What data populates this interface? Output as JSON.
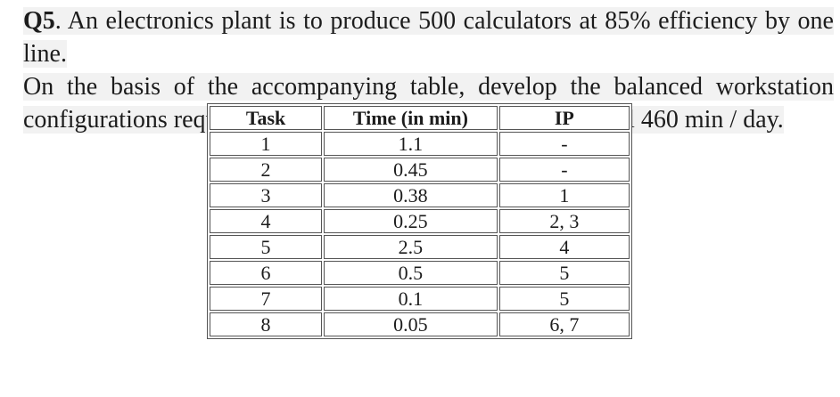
{
  "question": {
    "label": "Q5",
    "lines": [
      ". An electronics plant is to produce 500 calculators at 85% efficiency by one line.",
      "On the basis of the accompanying table, develop the balanced workstation",
      "configurations required to meet this production. Assume goal 460 min / day."
    ],
    "full_text": "Q5. An electronics plant is to produce 500 calculators at 85% efficiency by one line. On the basis of the accompanying table, develop the balanced workstation configurations required to meet this production. Assume goal 460 min / day."
  },
  "table": {
    "headers": [
      "Task",
      "Time (in min)",
      "IP"
    ],
    "rows": [
      [
        "1",
        "1.1",
        "-"
      ],
      [
        "2",
        "0.45",
        "-"
      ],
      [
        "3",
        "0.38",
        "1"
      ],
      [
        "4",
        "0.25",
        "2, 3"
      ],
      [
        "5",
        "2.5",
        "4"
      ],
      [
        "6",
        "0.5",
        "5"
      ],
      [
        "7",
        "0.1",
        "5"
      ],
      [
        "8",
        "0.05",
        "6, 7"
      ]
    ]
  },
  "colors": {
    "background": "#ffffff",
    "text": "#1c1c1c",
    "table_border": "#555555",
    "scan_highlight": "#f2f2f2"
  }
}
